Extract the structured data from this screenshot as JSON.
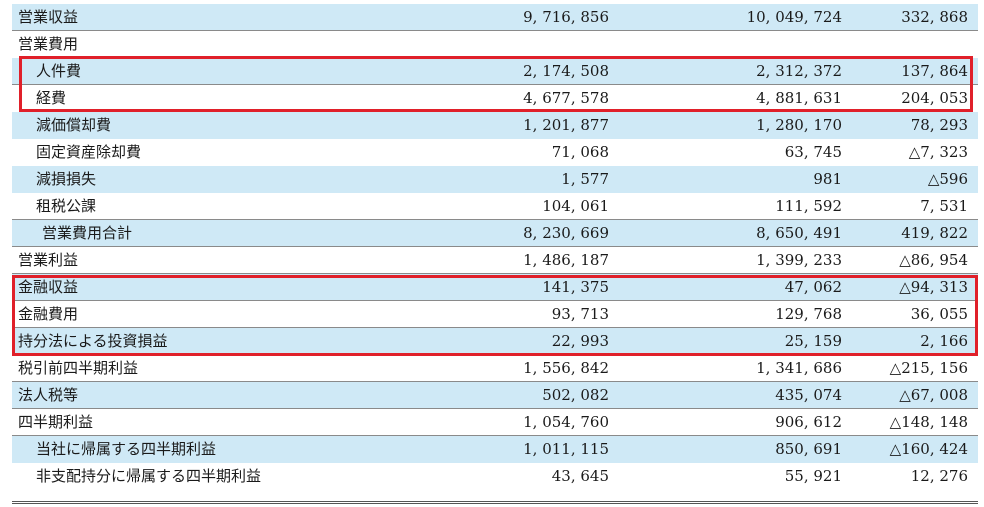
{
  "rows": [
    {
      "label": "営業収益",
      "v1": "9, 716, 856",
      "v2": "10, 049, 724",
      "v3": "332, 868"
    },
    {
      "label": "営業費用",
      "v1": "",
      "v2": "",
      "v3": ""
    },
    {
      "label": "人件費",
      "v1": "2, 174, 508",
      "v2": "2, 312, 372",
      "v3": "137, 864"
    },
    {
      "label": "経費",
      "v1": "4, 677, 578",
      "v2": "4, 881, 631",
      "v3": "204, 053"
    },
    {
      "label": "減価償却費",
      "v1": "1, 201, 877",
      "v2": "1, 280, 170",
      "v3": "78, 293"
    },
    {
      "label": "固定資産除却費",
      "v1": "71, 068",
      "v2": "63, 745",
      "v3": "△7, 323"
    },
    {
      "label": "減損損失",
      "v1": "1, 577",
      "v2": "981",
      "v3": "△596"
    },
    {
      "label": "租税公課",
      "v1": "104, 061",
      "v2": "111, 592",
      "v3": "7, 531"
    },
    {
      "label": "営業費用合計",
      "v1": "8, 230, 669",
      "v2": "8, 650, 491",
      "v3": "419, 822"
    },
    {
      "label": "営業利益",
      "v1": "1, 486, 187",
      "v2": "1, 399, 233",
      "v3": "△86, 954"
    },
    {
      "label": "金融収益",
      "v1": "141, 375",
      "v2": "47, 062",
      "v3": "△94, 313"
    },
    {
      "label": "金融費用",
      "v1": "93, 713",
      "v2": "129, 768",
      "v3": "36, 055"
    },
    {
      "label": "持分法による投資損益",
      "v1": "22, 993",
      "v2": "25, 159",
      "v3": "2, 166"
    },
    {
      "label": "税引前四半期利益",
      "v1": "1, 556, 842",
      "v2": "1, 341, 686",
      "v3": "△215, 156"
    },
    {
      "label": "法人税等",
      "v1": "502, 082",
      "v2": "435, 074",
      "v3": "△67, 008"
    },
    {
      "label": "四半期利益",
      "v1": "1, 054, 760",
      "v2": "906, 612",
      "v3": "△148, 148"
    },
    {
      "label": "当社に帰属する四半期利益",
      "v1": "1, 011, 115",
      "v2": "850, 691",
      "v3": "△160, 424"
    },
    {
      "label": "非支配持分に帰属する四半期利益",
      "v1": "43, 645",
      "v2": "55, 921",
      "v3": "12, 276"
    }
  ],
  "colors": {
    "row_shade": "#cfe9f6",
    "highlight_border": "#e0202a"
  }
}
